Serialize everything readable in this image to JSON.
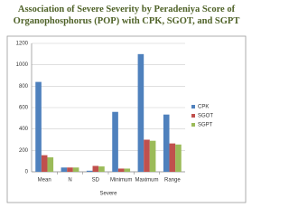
{
  "chart_data": {
    "type": "bar",
    "title": "Association of Severe Severity by Peradeniya Score of Organophosphorus (POP) with CPK, SGOT, and SGPT",
    "x_label": "Severe",
    "categories": [
      "Mean",
      "N",
      "SD",
      "Minimum",
      "Maximum",
      "Range"
    ],
    "series": [
      {
        "name": "CPK",
        "color": "#4f81bd",
        "values": [
          840,
          40,
          10,
          560,
          1100,
          535
        ]
      },
      {
        "name": "SGOT",
        "color": "#c0504d",
        "values": [
          155,
          40,
          55,
          30,
          300,
          265
        ]
      },
      {
        "name": "SGPT",
        "color": "#9bbb59",
        "values": [
          135,
          40,
          50,
          30,
          290,
          255
        ]
      }
    ],
    "ylim": [
      0,
      1200
    ],
    "yticks": [
      0,
      200,
      400,
      600,
      800,
      1000,
      1200
    ],
    "grid": true,
    "legend": "right"
  }
}
